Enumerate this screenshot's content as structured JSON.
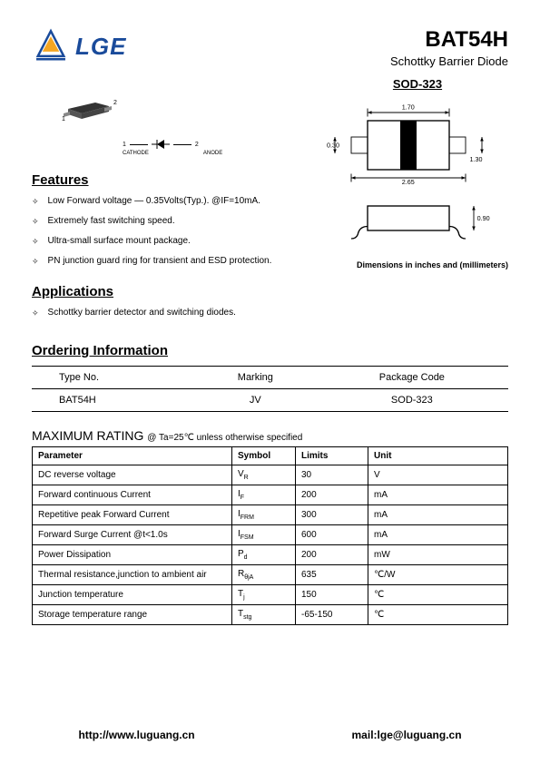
{
  "header": {
    "logo_text": "LGE",
    "part_number": "BAT54H",
    "subtitle": "Schottky Barrier Diode"
  },
  "package_name": "SOD-323",
  "package_dims": {
    "width": "1.70",
    "left_pad": "0.30",
    "right_pad": "1.30",
    "total_w": "2.65",
    "height": "0.90"
  },
  "symbol": {
    "pin1_num": "1",
    "pin1_label": "CATHODE",
    "pin2_num": "2",
    "pin2_label": "ANODE"
  },
  "pkg_pins": {
    "p1": "1",
    "p2": "2"
  },
  "dims_note": "Dimensions in inches and (millimeters)",
  "sections": {
    "features": "Features",
    "applications": "Applications",
    "ordering": "Ordering Information"
  },
  "features": [
    "Low Forward voltage — 0.35Volts(Typ.). @IF=10mA.",
    "Extremely fast switching speed.",
    "Ultra-small surface mount package.",
    "PN junction guard ring for transient and ESD protection."
  ],
  "applications": [
    "Schottky barrier detector and switching diodes."
  ],
  "ordering": {
    "headers": [
      "Type No.",
      "Marking",
      "Package Code"
    ],
    "row": [
      "BAT54H",
      "JV",
      "SOD-323"
    ]
  },
  "max_rating": {
    "title": "MAXIMUM RATING",
    "condition": "@ Ta=25℃ unless otherwise specified",
    "headers": [
      "Parameter",
      "Symbol",
      "Limits",
      "Unit"
    ],
    "rows": [
      {
        "param": "DC reverse voltage",
        "sym": "V",
        "sub": "R",
        "limit": "30",
        "unit": "V"
      },
      {
        "param": "Forward continuous Current",
        "sym": "I",
        "sub": "F",
        "limit": "200",
        "unit": "mA"
      },
      {
        "param": "Repetitive peak Forward Current",
        "sym": "I",
        "sub": "FRM",
        "limit": "300",
        "unit": "mA"
      },
      {
        "param": "Forward Surge Current            @t<1.0s",
        "sym": "I",
        "sub": "FSM",
        "limit": "600",
        "unit": "mA"
      },
      {
        "param": "Power Dissipation",
        "sym": "P",
        "sub": "d",
        "limit": "200",
        "unit": "mW"
      },
      {
        "param": "Thermal resistance,junction to ambient air",
        "sym": "R",
        "sub": "θjA",
        "limit": "635",
        "unit": "℃/W"
      },
      {
        "param": "Junction temperature",
        "sym": "T",
        "sub": "j",
        "limit": "150",
        "unit": "℃"
      },
      {
        "param": "Storage temperature range",
        "sym": "T",
        "sub": "stg",
        "limit": "-65-150",
        "unit": "℃"
      }
    ]
  },
  "footer": {
    "url": "http://www.luguang.cn",
    "email": "mail:lge@luguang.cn"
  }
}
